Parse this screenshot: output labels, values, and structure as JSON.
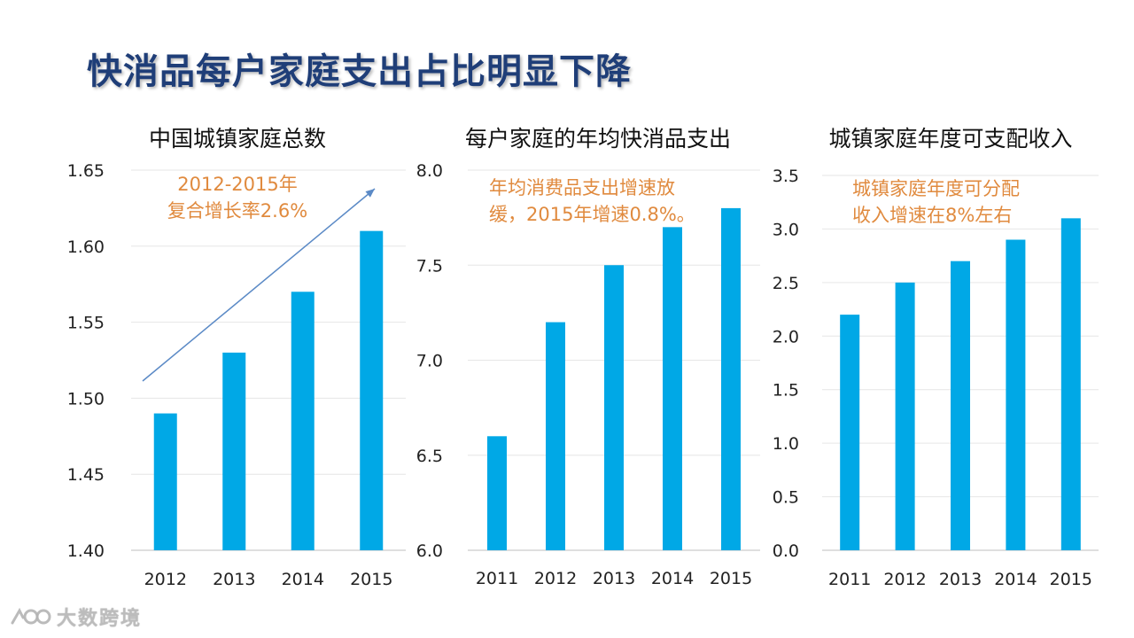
{
  "page": {
    "title": "快消品每户家庭支出占比明显下降"
  },
  "watermark": {
    "text": "大数跨境"
  },
  "colors": {
    "bar": "#00a8e6",
    "annotation": "#e08a3e",
    "title": "#1f3e78",
    "arrow": "#5b8ac6",
    "grid": "#e6e6e6",
    "axis": "#bfbfbf"
  },
  "chart_data": [
    {
      "type": "bar",
      "title": "中国城镇家庭总数",
      "categories": [
        "2012",
        "2013",
        "2014",
        "2015"
      ],
      "values": [
        1.49,
        1.53,
        1.57,
        1.61
      ],
      "ylim": [
        1.4,
        1.65
      ],
      "yticks": [
        "1.40",
        "1.45",
        "1.50",
        "1.55",
        "1.60",
        "1.65"
      ],
      "annotation": [
        "2012-2015年",
        "复合增长率2.6%"
      ],
      "trend_arrow": true
    },
    {
      "type": "bar",
      "title": "每户家庭的年均快消品支出",
      "categories": [
        "2011",
        "2012",
        "2013",
        "2014",
        "2015"
      ],
      "values": [
        6.6,
        7.2,
        7.5,
        7.7,
        7.8
      ],
      "ylim": [
        6.0,
        8.0
      ],
      "yticks": [
        "6.0",
        "6.5",
        "7.0",
        "7.5",
        "8.0"
      ],
      "annotation": [
        "年均消费品支出增速放",
        "缓，2015年增速0.8%。"
      ],
      "trend_arrow": false
    },
    {
      "type": "bar",
      "title": "城镇家庭年度可支配收入",
      "categories": [
        "2011",
        "2012",
        "2013",
        "2014",
        "2015"
      ],
      "values": [
        2.2,
        2.5,
        2.7,
        2.9,
        3.1
      ],
      "ylim": [
        0.0,
        3.5
      ],
      "yticks": [
        "0.0",
        "0.5",
        "1.0",
        "1.5",
        "2.0",
        "2.5",
        "3.0",
        "3.5"
      ],
      "annotation": [
        "城镇家庭年度可分配",
        "收入增速在8%左右"
      ],
      "trend_arrow": false
    }
  ]
}
